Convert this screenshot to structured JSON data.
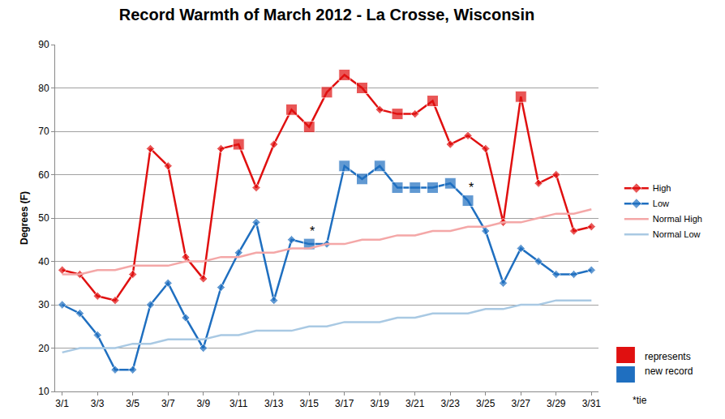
{
  "chart_data": {
    "type": "line",
    "title": "Record Warmth of March 2012 - La Crosse, Wisconsin",
    "y_label": "Degrees (F)",
    "categories": [
      "3/1",
      null,
      "3/3",
      null,
      "3/5",
      null,
      "3/7",
      null,
      "3/9",
      null,
      "3/11",
      null,
      "3/13",
      null,
      "3/15",
      null,
      "3/17",
      null,
      "3/19",
      null,
      "3/21",
      null,
      "3/23",
      null,
      "3/25",
      null,
      "3/27",
      null,
      "3/29",
      null,
      "3/31"
    ],
    "ylim": [
      10,
      90
    ],
    "yticks": [
      10,
      20,
      30,
      40,
      50,
      60,
      70,
      80,
      90
    ],
    "grid": true,
    "legend": "right",
    "series": [
      {
        "name": "High",
        "color": "#e01010",
        "marker": "diamond",
        "line_style": "solid",
        "values": [
          38,
          37,
          32,
          31,
          37,
          66,
          62,
          41,
          36,
          66,
          67,
          57,
          67,
          75,
          71,
          79,
          83,
          80,
          75,
          74,
          74,
          77,
          67,
          69,
          66,
          49,
          78,
          58,
          60,
          47,
          48
        ],
        "records": [
          false,
          false,
          false,
          false,
          false,
          false,
          false,
          false,
          false,
          false,
          true,
          false,
          false,
          true,
          true,
          true,
          true,
          true,
          false,
          true,
          false,
          true,
          false,
          false,
          false,
          false,
          true,
          false,
          false,
          false,
          false
        ],
        "ties": [
          false,
          false,
          false,
          false,
          false,
          false,
          false,
          false,
          false,
          false,
          false,
          false,
          false,
          false,
          false,
          false,
          false,
          false,
          false,
          false,
          false,
          false,
          false,
          false,
          false,
          false,
          false,
          false,
          false,
          false,
          false
        ]
      },
      {
        "name": "Low",
        "color": "#1f6fc0",
        "marker": "diamond",
        "line_style": "solid",
        "values": [
          30,
          28,
          23,
          15,
          15,
          30,
          35,
          27,
          20,
          34,
          42,
          49,
          31,
          45,
          44,
          44,
          62,
          59,
          62,
          57,
          57,
          57,
          58,
          54,
          47,
          35,
          43,
          40,
          37,
          37,
          38
        ],
        "records": [
          false,
          false,
          false,
          false,
          false,
          false,
          false,
          false,
          false,
          false,
          false,
          false,
          false,
          false,
          true,
          false,
          true,
          true,
          true,
          true,
          true,
          true,
          true,
          true,
          false,
          false,
          false,
          false,
          false,
          false,
          false
        ],
        "ties": [
          false,
          false,
          false,
          false,
          false,
          false,
          false,
          false,
          false,
          false,
          false,
          false,
          false,
          false,
          true,
          false,
          false,
          false,
          false,
          false,
          false,
          false,
          false,
          true,
          false,
          false,
          false,
          false,
          false,
          false,
          false
        ]
      },
      {
        "name": "Normal High",
        "color": "#f4a7a7",
        "marker": "none",
        "line_style": "solid",
        "values": [
          37,
          37,
          38,
          38,
          39,
          39,
          39,
          40,
          40,
          41,
          41,
          42,
          42,
          43,
          43,
          44,
          44,
          45,
          45,
          46,
          46,
          47,
          47,
          48,
          48,
          49,
          49,
          50,
          51,
          51,
          52
        ]
      },
      {
        "name": "Normal Low",
        "color": "#a9c9e3",
        "marker": "none",
        "line_style": "solid",
        "values": [
          19,
          20,
          20,
          20,
          21,
          21,
          22,
          22,
          22,
          23,
          23,
          24,
          24,
          24,
          25,
          25,
          26,
          26,
          26,
          27,
          27,
          28,
          28,
          28,
          29,
          29,
          30,
          30,
          31,
          31,
          31
        ]
      }
    ],
    "tie_mark": "*",
    "record_note": [
      "represents",
      "new record"
    ],
    "tie_note": "*tie"
  }
}
